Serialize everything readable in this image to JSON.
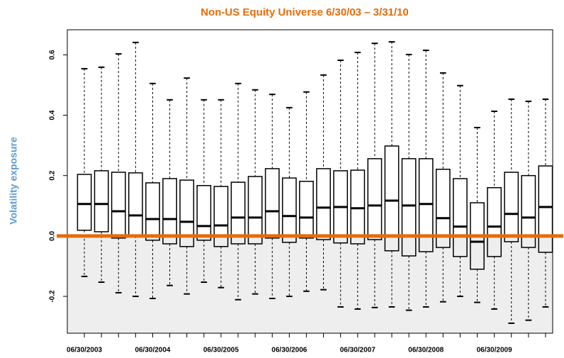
{
  "chart_data": {
    "type": "boxplot",
    "title": "Non-US Equity Universe 6/30/03 – 3/31/10",
    "title_color": "#e46c0a",
    "y_label": "Volatility exposure",
    "y_label_color": "#5b9bd5",
    "categories": [
      "06/30/2003",
      null,
      null,
      null,
      "06/30/2004",
      null,
      null,
      null,
      "06/30/2005",
      null,
      null,
      null,
      "06/30/2006",
      null,
      null,
      null,
      "06/30/2007",
      null,
      null,
      null,
      "06/30/2008",
      null,
      null,
      null,
      "06/30/2009",
      null,
      null,
      null
    ],
    "whisker_high": [
      0.554,
      0.559,
      0.603,
      0.641,
      0.505,
      0.451,
      0.523,
      0.451,
      0.451,
      0.505,
      0.484,
      0.469,
      0.425,
      0.477,
      0.533,
      0.582,
      0.608,
      0.638,
      0.643,
      0.601,
      0.615,
      0.54,
      0.498,
      0.359,
      0.413,
      0.453,
      0.446,
      0.453
    ],
    "q3": [
      0.204,
      0.216,
      0.211,
      0.209,
      0.176,
      0.19,
      0.185,
      0.167,
      0.164,
      0.178,
      0.197,
      0.223,
      0.192,
      0.181,
      0.223,
      0.216,
      0.218,
      0.256,
      0.298,
      0.256,
      0.256,
      0.221,
      0.19,
      0.11,
      0.16,
      0.211,
      0.2,
      0.232
    ],
    "median": [
      0.106,
      0.106,
      0.082,
      0.068,
      0.056,
      0.056,
      0.047,
      0.033,
      0.035,
      0.061,
      0.061,
      0.082,
      0.066,
      0.061,
      0.094,
      0.096,
      0.092,
      0.101,
      0.117,
      0.101,
      0.106,
      0.059,
      0.031,
      -0.019,
      0.031,
      0.073,
      0.061,
      0.096
    ],
    "q1": [
      0.019,
      0.014,
      -0.007,
      0,
      -0.014,
      -0.026,
      -0.035,
      -0.014,
      -0.035,
      -0.026,
      -0.026,
      -0.007,
      -0.021,
      -0.007,
      -0.012,
      -0.023,
      -0.026,
      -0.012,
      -0.049,
      -0.066,
      -0.052,
      -0.038,
      -0.068,
      -0.11,
      -0.068,
      -0.019,
      -0.038,
      -0.054
    ],
    "whisker_low": [
      -0.134,
      -0.153,
      -0.188,
      -0.2,
      -0.207,
      -0.164,
      -0.192,
      -0.153,
      -0.171,
      -0.211,
      -0.192,
      -0.207,
      -0.2,
      -0.183,
      -0.178,
      -0.235,
      -0.242,
      -0.237,
      -0.235,
      -0.246,
      -0.235,
      -0.218,
      -0.2,
      -0.22,
      -0.242,
      -0.289,
      -0.279,
      -0.235
    ],
    "color": "#000000",
    "ylim": [
      -0.322,
      0.683
    ],
    "yticks": [
      -0.2,
      {
        "value": 0,
        "label": "0.0"
      },
      0.2,
      0.4,
      0.6
    ],
    "reference_line": 0,
    "reference_line_color": "#e46c0a",
    "shade_below_color": "#eeeeee"
  }
}
